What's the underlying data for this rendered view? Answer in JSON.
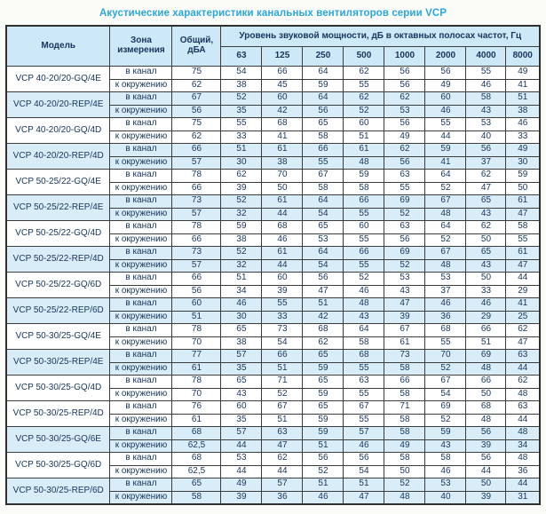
{
  "title": "Акустические характеристики канальных вентиляторов  серии VCP",
  "colors": {
    "title_text": "#2aa7de",
    "header_bg": "#cde8f6",
    "shaded_row_bg": "#d9edf8",
    "cell_text": "#16355c",
    "border": "#3c3c3c"
  },
  "table": {
    "headers": {
      "model": "Модель",
      "zone": "Зона измерения",
      "total": "Общий, дБА",
      "octave_group": "Уровень звуковой мощности, дБ в октавных полосах частот, Гц",
      "frequencies": [
        "63",
        "125",
        "250",
        "500",
        "1000",
        "2000",
        "4000",
        "8000"
      ]
    },
    "zone_labels": {
      "duct": "в канал",
      "ambient": "к окружению"
    },
    "rows": [
      {
        "model": "VCP 40-20/20-GQ/4E",
        "shaded": false,
        "duct": {
          "total": "75",
          "bands": [
            "54",
            "66",
            "64",
            "62",
            "56",
            "56",
            "55",
            "49"
          ]
        },
        "ambient": {
          "total": "62",
          "bands": [
            "38",
            "45",
            "59",
            "55",
            "56",
            "49",
            "46",
            "41"
          ]
        }
      },
      {
        "model": "VCP 40-20/20-REP/4E",
        "shaded": true,
        "duct": {
          "total": "67",
          "bands": [
            "52",
            "60",
            "64",
            "62",
            "62",
            "60",
            "58",
            "51"
          ]
        },
        "ambient": {
          "total": "56",
          "bands": [
            "35",
            "42",
            "56",
            "52",
            "53",
            "46",
            "43",
            "38"
          ]
        }
      },
      {
        "model": "VCP 40-20/20-GQ/4D",
        "shaded": false,
        "duct": {
          "total": "75",
          "bands": [
            "55",
            "68",
            "65",
            "60",
            "56",
            "55",
            "53",
            "46"
          ]
        },
        "ambient": {
          "total": "62",
          "bands": [
            "33",
            "41",
            "58",
            "51",
            "49",
            "44",
            "40",
            "33"
          ]
        }
      },
      {
        "model": "VCP 40-20/20-REP/4D",
        "shaded": true,
        "duct": {
          "total": "66",
          "bands": [
            "51",
            "61",
            "66",
            "61",
            "62",
            "59",
            "56",
            "49"
          ]
        },
        "ambient": {
          "total": "57",
          "bands": [
            "30",
            "38",
            "55",
            "48",
            "56",
            "41",
            "37",
            "30"
          ]
        }
      },
      {
        "model": "VCP 50-25/22-GQ/4E",
        "shaded": false,
        "duct": {
          "total": "78",
          "bands": [
            "62",
            "70",
            "67",
            "59",
            "63",
            "64",
            "62",
            "59"
          ]
        },
        "ambient": {
          "total": "66",
          "bands": [
            "39",
            "50",
            "58",
            "58",
            "55",
            "52",
            "47",
            "50"
          ]
        }
      },
      {
        "model": "VCP 50-25/22-REP/4E",
        "shaded": true,
        "duct": {
          "total": "73",
          "bands": [
            "52",
            "61",
            "64",
            "66",
            "69",
            "67",
            "65",
            "61"
          ]
        },
        "ambient": {
          "total": "57",
          "bands": [
            "32",
            "44",
            "54",
            "55",
            "52",
            "48",
            "43",
            "47"
          ]
        }
      },
      {
        "model": "VCP 50-25/22-GQ/4D",
        "shaded": false,
        "duct": {
          "total": "78",
          "bands": [
            "59",
            "68",
            "65",
            "60",
            "63",
            "64",
            "62",
            "58"
          ]
        },
        "ambient": {
          "total": "66",
          "bands": [
            "38",
            "46",
            "53",
            "55",
            "56",
            "52",
            "50",
            "55"
          ]
        }
      },
      {
        "model": "VCP 50-25/22-REP/4D",
        "shaded": true,
        "duct": {
          "total": "73",
          "bands": [
            "52",
            "61",
            "64",
            "66",
            "69",
            "67",
            "65",
            "61"
          ]
        },
        "ambient": {
          "total": "57",
          "bands": [
            "32",
            "44",
            "54",
            "55",
            "52",
            "48",
            "43",
            "47"
          ]
        }
      },
      {
        "model": "VCP 50-25/22-GQ/6D",
        "shaded": false,
        "duct": {
          "total": "66",
          "bands": [
            "51",
            "60",
            "56",
            "52",
            "53",
            "53",
            "50",
            "44"
          ]
        },
        "ambient": {
          "total": "56",
          "bands": [
            "34",
            "39",
            "47",
            "46",
            "43",
            "37",
            "33",
            "29"
          ]
        }
      },
      {
        "model": "VCP 50-25/22-REP/6D",
        "shaded": true,
        "duct": {
          "total": "60",
          "bands": [
            "46",
            "55",
            "51",
            "48",
            "47",
            "46",
            "46",
            "41"
          ]
        },
        "ambient": {
          "total": "51",
          "bands": [
            "30",
            "33",
            "42",
            "43",
            "39",
            "36",
            "29",
            "25"
          ]
        }
      },
      {
        "model": "VCP 50-30/25-GQ/4E",
        "shaded": false,
        "duct": {
          "total": "78",
          "bands": [
            "65",
            "73",
            "68",
            "64",
            "67",
            "68",
            "66",
            "62"
          ]
        },
        "ambient": {
          "total": "70",
          "bands": [
            "38",
            "54",
            "62",
            "58",
            "61",
            "55",
            "51",
            "47"
          ]
        }
      },
      {
        "model": "VCP 50-30/25-REP/4E",
        "shaded": true,
        "duct": {
          "total": "77",
          "bands": [
            "57",
            "66",
            "65",
            "68",
            "73",
            "70",
            "69",
            "63"
          ]
        },
        "ambient": {
          "total": "61",
          "bands": [
            "35",
            "51",
            "59",
            "55",
            "58",
            "52",
            "48",
            "44"
          ]
        }
      },
      {
        "model": "VCP 50-30/25-GQ/4D",
        "shaded": false,
        "duct": {
          "total": "78",
          "bands": [
            "65",
            "71",
            "65",
            "63",
            "66",
            "67",
            "66",
            "62"
          ]
        },
        "ambient": {
          "total": "70",
          "bands": [
            "43",
            "52",
            "59",
            "55",
            "58",
            "54",
            "50",
            "48"
          ]
        }
      },
      {
        "model": "VCP 50-30/25-REP/4D",
        "shaded": false,
        "duct": {
          "total": "76",
          "bands": [
            "60",
            "67",
            "65",
            "67",
            "71",
            "69",
            "68",
            "63"
          ]
        },
        "ambient": {
          "total": "61",
          "bands": [
            "35",
            "51",
            "59",
            "55",
            "58",
            "52",
            "48",
            "44"
          ]
        }
      },
      {
        "model": "VCP 50-30/25-GQ/6E",
        "shaded": true,
        "duct": {
          "total": "68",
          "bands": [
            "57",
            "63",
            "59",
            "57",
            "58",
            "59",
            "56",
            "48"
          ]
        },
        "ambient": {
          "total": "62,5",
          "bands": [
            "44",
            "47",
            "51",
            "46",
            "49",
            "43",
            "39",
            "34"
          ]
        }
      },
      {
        "model": "VCP 50-30/25-GQ/6D",
        "shaded": false,
        "duct": {
          "total": "68",
          "bands": [
            "53",
            "62",
            "56",
            "56",
            "58",
            "58",
            "56",
            "48"
          ]
        },
        "ambient": {
          "total": "62,5",
          "bands": [
            "44",
            "44",
            "52",
            "54",
            "50",
            "46",
            "44",
            "36"
          ]
        }
      },
      {
        "model": "VCP 50-30/25-REP/6D",
        "shaded": true,
        "duct": {
          "total": "65",
          "bands": [
            "49",
            "57",
            "51",
            "51",
            "52",
            "53",
            "50",
            "44"
          ]
        },
        "ambient": {
          "total": "58",
          "bands": [
            "39",
            "36",
            "46",
            "47",
            "48",
            "40",
            "39",
            "31"
          ]
        }
      }
    ]
  }
}
